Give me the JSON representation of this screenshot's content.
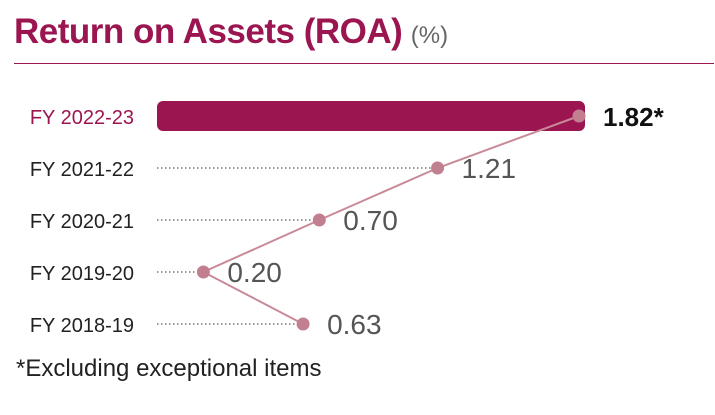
{
  "header": {
    "title": "Return on Assets (ROA)",
    "unit": "(%)"
  },
  "footnote": "*Excluding exceptional items",
  "colors": {
    "accent": "#9b1650",
    "line": "#c98a98",
    "dots": "#c27f90",
    "leader": "#777777"
  },
  "chart_data": {
    "type": "bar+line",
    "title": "Return on Assets (ROA)",
    "unit": "(%)",
    "categories": [
      "FY 2022-23",
      "FY 2021-22",
      "FY 2020-21",
      "FY 2019-20",
      "FY 2018-19"
    ],
    "values": [
      1.82,
      1.21,
      0.7,
      0.2,
      0.63
    ],
    "value_labels": [
      "1.82*",
      "1.21",
      "0.70",
      "0.20",
      "0.63"
    ],
    "highlight_index": 0,
    "xlim": [
      0,
      1.82
    ],
    "grid": false
  }
}
